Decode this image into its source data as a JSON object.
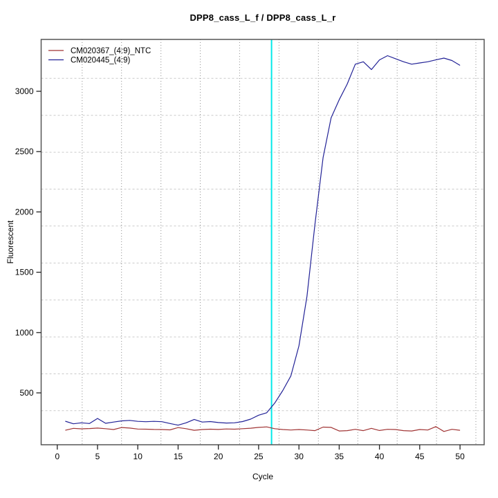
{
  "chart_data": {
    "type": "line",
    "title": "DPP8_cass_L_f / DPP8_cass_L_r",
    "xlabel": "Cycle",
    "ylabel": "Fluorescent",
    "x": [
      1,
      2,
      3,
      4,
      5,
      6,
      7,
      8,
      9,
      10,
      11,
      12,
      13,
      14,
      15,
      16,
      17,
      18,
      19,
      20,
      21,
      22,
      23,
      24,
      25,
      26,
      27,
      28,
      29,
      30,
      31,
      32,
      33,
      34,
      35,
      36,
      37,
      38,
      39,
      40,
      41,
      42,
      43,
      44,
      45,
      46,
      47,
      48,
      49,
      50
    ],
    "series": [
      {
        "name": "CM020367_(4:9)_NTC",
        "color": "#A03333",
        "values": [
          190,
          206,
          202,
          204,
          208,
          203,
          196,
          213,
          208,
          200,
          199,
          197,
          196,
          193,
          212,
          203,
          190,
          196,
          199,
          197,
          201,
          199,
          203,
          207,
          214,
          218,
          203,
          196,
          192,
          196,
          192,
          187,
          216,
          214,
          184,
          187,
          198,
          187,
          206,
          188,
          198,
          196,
          187,
          184,
          196,
          192,
          220,
          180,
          198,
          190
        ]
      },
      {
        "name": "CM020445_(4:9)",
        "color": "#212196",
        "values": [
          265,
          244,
          252,
          246,
          288,
          248,
          258,
          268,
          272,
          264,
          261,
          264,
          261,
          246,
          232,
          252,
          280,
          258,
          262,
          254,
          250,
          252,
          262,
          282,
          315,
          335,
          415,
          520,
          640,
          890,
          1300,
          1900,
          2450,
          2780,
          2930,
          3060,
          3225,
          3245,
          3180,
          3260,
          3295,
          3270,
          3245,
          3225,
          3235,
          3245,
          3260,
          3275,
          3255,
          3215
        ]
      }
    ],
    "threshold_line": {
      "x": 26.6,
      "color": "#00E8E8"
    },
    "axes": {
      "xlim": [
        -2,
        53
      ],
      "ylim": [
        70,
        3430
      ],
      "xticks": [
        0,
        5,
        10,
        15,
        20,
        25,
        30,
        35,
        40,
        45,
        50
      ],
      "yticks": [
        500,
        1000,
        1500,
        2000,
        2500,
        3000
      ]
    },
    "grid": {
      "x_values": [
        3.09,
        7.98,
        12.87,
        17.76,
        22.64,
        27.53,
        32.42,
        37.31,
        42.2,
        47.08,
        51.97
      ],
      "y_values": [
        352,
        658,
        964,
        1270,
        1576,
        1883,
        2189,
        2495,
        2801,
        3107
      ],
      "h_color": "#C9C9C9",
      "v_color": "#8C8C8C"
    },
    "legend": {
      "position": "top-left",
      "items": [
        {
          "label": "CM020367_(4:9)_NTC",
          "color": "#A03333"
        },
        {
          "label": "CM020445_(4:9)",
          "color": "#212196"
        }
      ]
    },
    "style": {
      "border_color": "#555555",
      "tick_color": "#222222",
      "background": "#ffffff"
    }
  }
}
